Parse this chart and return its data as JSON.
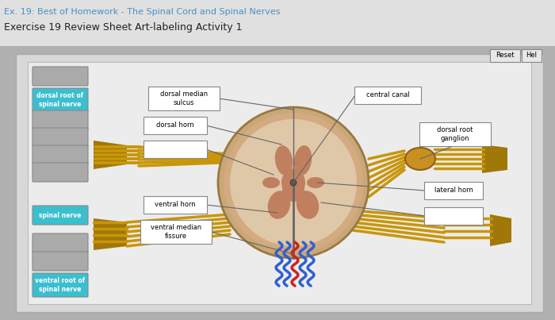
{
  "title_top": "Ex. 19: Best of Homework - The Spinal Cord and Spinal Nerves",
  "title_main": "Exercise 19 Review Sheet Art-labeling Activity 1",
  "title_color": "#4a90c4",
  "reset_label": "Reset",
  "help_label": "Hel",
  "page_bg": "#b0b0b0",
  "top_strip_bg": "#d8d8d8",
  "panel_bg": "#d0d0d0",
  "inner_bg": "#e8e8e8",
  "cord_outer_color": "#c8a878",
  "cord_outer_edge": "#9a7840",
  "cord_inner_color": "#ddbf98",
  "cord_gray_color": "#c08060",
  "nerve_color": "#c8960a",
  "nerve_dark": "#a07808",
  "blue_vessel": "#3060d0",
  "red_vessel": "#cc2222",
  "left_boxes": [
    {
      "label": "",
      "color": "#aaaaaa"
    },
    {
      "label": "dorsal root of\nspinal nerve",
      "color": "#3bbfcf"
    },
    {
      "label": "",
      "color": "#aaaaaa"
    },
    {
      "label": "",
      "color": "#aaaaaa"
    },
    {
      "label": "",
      "color": "#aaaaaa"
    },
    {
      "label": "",
      "color": "#aaaaaa"
    },
    {
      "label": "spinal nerve",
      "color": "#3bbfcf"
    },
    {
      "label": "",
      "color": "#aaaaaa"
    },
    {
      "label": "",
      "color": "#aaaaaa"
    },
    {
      "label": "ventral root of\nspinal nerve",
      "color": "#3bbfcf"
    }
  ]
}
